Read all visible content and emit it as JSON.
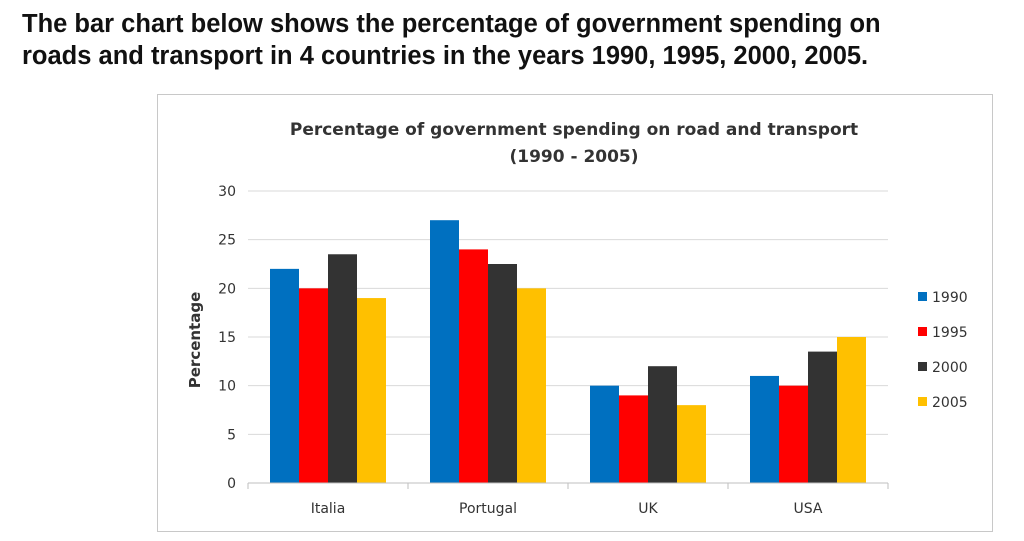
{
  "heading": {
    "line1": "The bar chart below shows the percentage of government spending on",
    "line2": "roads and transport in 4 countries in the years 1990, 1995, 2000, 2005."
  },
  "chart_data": {
    "type": "bar",
    "title": "Percentage of government spending on road and transport",
    "subtitle": "(1990 - 2005)",
    "xlabel": "",
    "ylabel": "Percentage",
    "ylim": [
      0,
      30
    ],
    "yticks": [
      0,
      5,
      10,
      15,
      20,
      25,
      30
    ],
    "grid": true,
    "legend": "right",
    "categories": [
      "Italia",
      "Portugal",
      "UK",
      "USA"
    ],
    "series": [
      {
        "name": "1990",
        "color": "#0070c0",
        "values": [
          22,
          27,
          10,
          11
        ]
      },
      {
        "name": "1995",
        "color": "#ff0000",
        "values": [
          20,
          24,
          9,
          10
        ]
      },
      {
        "name": "2000",
        "color": "#333333",
        "values": [
          23.5,
          22.5,
          12,
          13.5
        ]
      },
      {
        "name": "2005",
        "color": "#ffc000",
        "values": [
          19,
          20,
          8,
          15
        ]
      }
    ]
  }
}
